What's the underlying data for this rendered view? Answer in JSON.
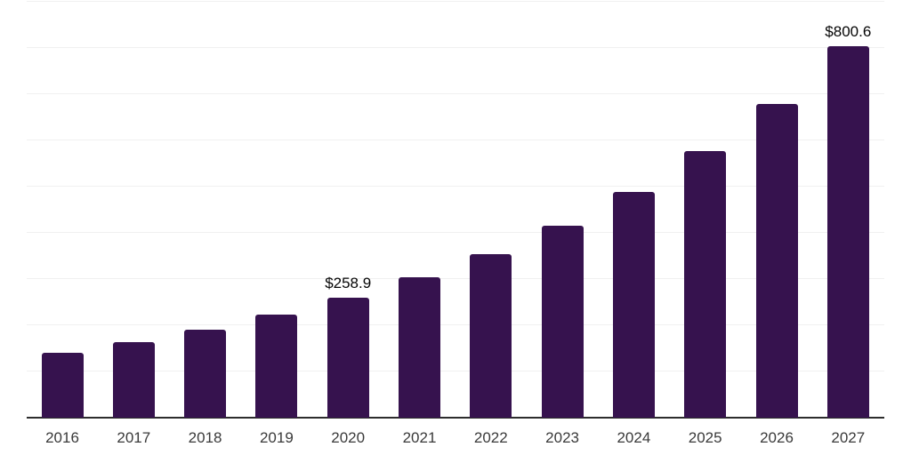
{
  "chart_data": {
    "type": "bar",
    "title": "",
    "xlabel": "",
    "ylabel": "",
    "categories": [
      "2016",
      "2017",
      "2018",
      "2019",
      "2020",
      "2021",
      "2022",
      "2023",
      "2024",
      "2025",
      "2026",
      "2027"
    ],
    "values": [
      140.5,
      163.0,
      189.8,
      221.8,
      258.9,
      303.4,
      352.7,
      414.0,
      486.9,
      575.0,
      676.1,
      800.6
    ],
    "bar_labels": [
      "",
      "",
      "",
      "",
      "$258.9",
      "",
      "",
      "",
      "",
      "",
      "",
      "$800.6"
    ],
    "ylim": [
      0,
      902
    ],
    "gridline_step": 100,
    "grid": true,
    "legend": false,
    "bar_color": "#36124E",
    "gridline_color": "#f0f0f0",
    "axis_line_color": "#2d2d2d",
    "tick_label_color": "#3a3a3a",
    "value_label_color": "#050505"
  }
}
